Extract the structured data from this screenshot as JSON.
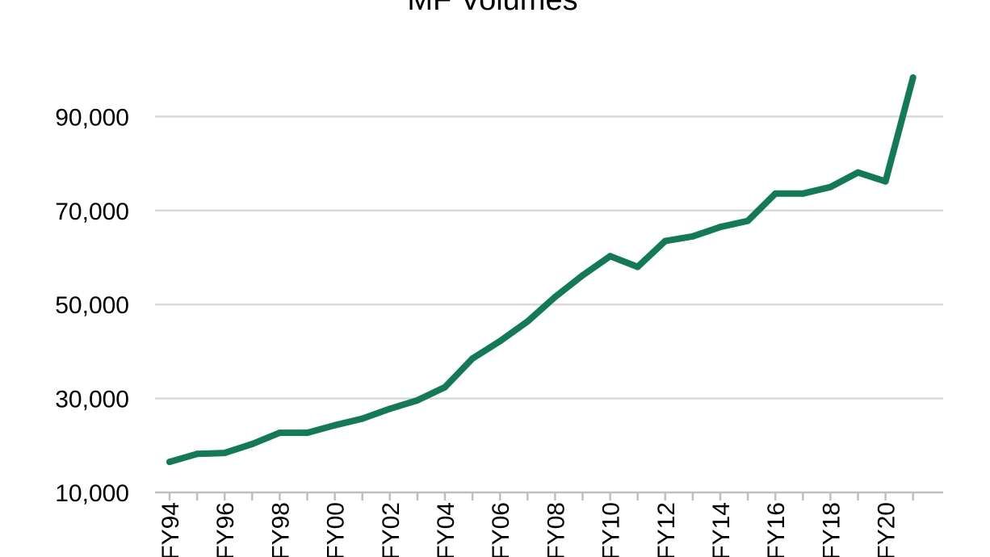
{
  "chart_data": {
    "type": "line",
    "title": "MF Volumes",
    "xlabel": "",
    "ylabel": "",
    "ylim": [
      10000,
      100000
    ],
    "y_ticks": [
      "10,000",
      "30,000",
      "50,000",
      "70,000",
      "90,000"
    ],
    "y_tick_values": [
      10000,
      30000,
      50000,
      70000,
      90000
    ],
    "grid": true,
    "line_color": "#127a55",
    "categories": [
      "FY94",
      "FY95",
      "FY96",
      "FY97",
      "FY98",
      "FY99",
      "FY00",
      "FY01",
      "FY02",
      "FY03",
      "FY04",
      "FY05",
      "FY06",
      "FY07",
      "FY08",
      "FY09",
      "FY10",
      "FY11",
      "FY12",
      "FY13",
      "FY14",
      "FY15",
      "FY16",
      "FY17",
      "FY18",
      "FY19",
      "FY20",
      "FY21"
    ],
    "x_tick_labels": [
      "FY94",
      "FY96",
      "FY98",
      "FY00",
      "FY02",
      "FY04",
      "FY06",
      "FY08",
      "FY10",
      "FY12",
      "FY14",
      "FY16",
      "FY18",
      "FY20"
    ],
    "series": [
      {
        "values": [
          16500,
          18200,
          18400,
          20300,
          22700,
          22700,
          24300,
          25700,
          27800,
          29600,
          32400,
          38500,
          42200,
          46400,
          51600,
          56200,
          60300,
          58000,
          63500,
          64500,
          66500,
          67800,
          73600,
          73600,
          75000,
          78100,
          76200,
          98300
        ]
      }
    ]
  }
}
